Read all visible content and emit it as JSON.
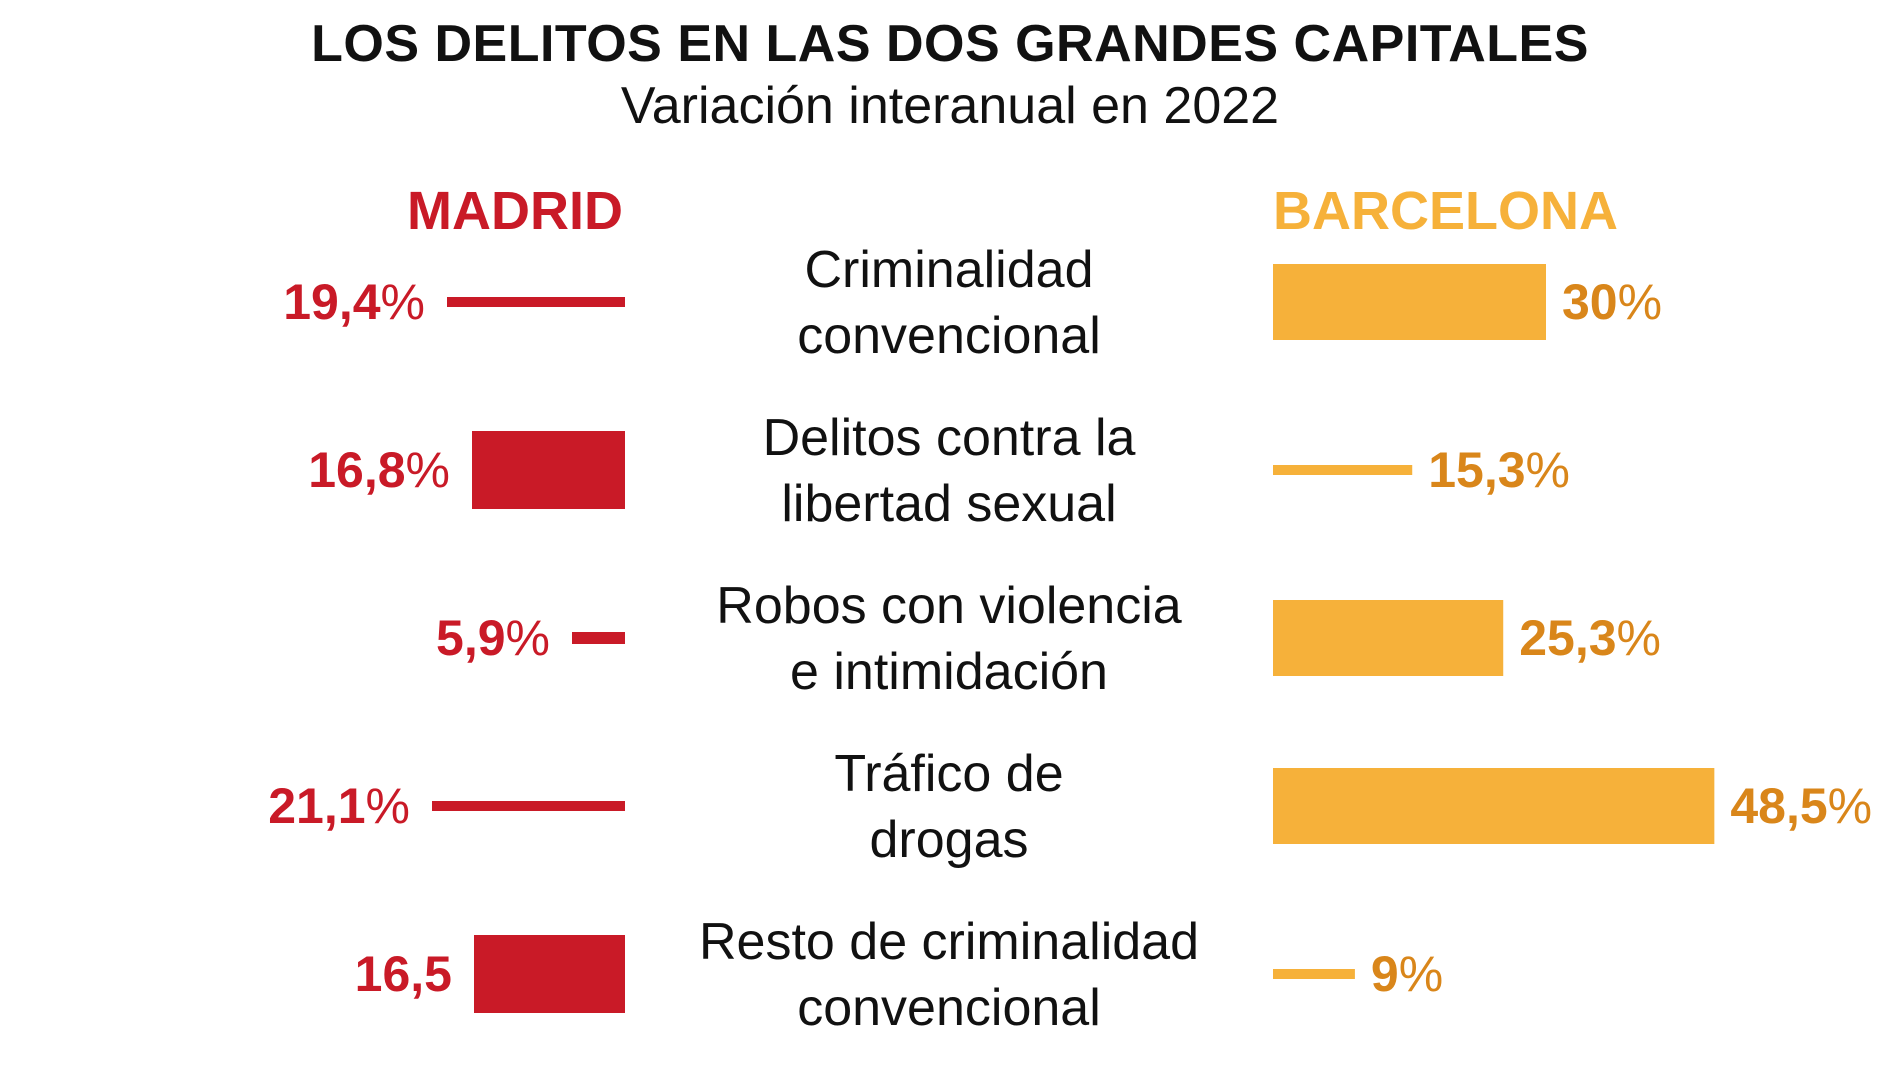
{
  "title": "LOS DELITOS EN LAS DOS GRANDES CAPITALES",
  "subtitle": "Variación interanual en 2022",
  "colors": {
    "madrid": "#c91a27",
    "barcelona": "#f6b13a",
    "barcelona_label": "#d9861a",
    "text": "#111111"
  },
  "chart_data": {
    "type": "bar",
    "title": "LOS DELITOS EN LAS DOS GRANDES CAPITALES",
    "subtitle": "Variación interanual en 2022",
    "categories": [
      [
        "Criminalidad",
        "convencional"
      ],
      [
        "Delitos contra la",
        "libertad sexual"
      ],
      [
        "Robos con violencia",
        "e intimidación"
      ],
      [
        "Tráfico de",
        "drogas"
      ],
      [
        "Resto de criminalidad",
        "convencional"
      ]
    ],
    "series": [
      {
        "name": "MADRID",
        "values": [
          19.4,
          16.8,
          5.9,
          21.1,
          16.5
        ],
        "labels": [
          "19,4%",
          "16,8%",
          "5,9%",
          "21,1%",
          "16,5"
        ]
      },
      {
        "name": "BARCELONA",
        "values": [
          30,
          15.3,
          25.3,
          48.5,
          9
        ],
        "labels": [
          "30%",
          "15,3%",
          "25,3%",
          "48,5%",
          "9%"
        ]
      }
    ],
    "legend": "top"
  }
}
